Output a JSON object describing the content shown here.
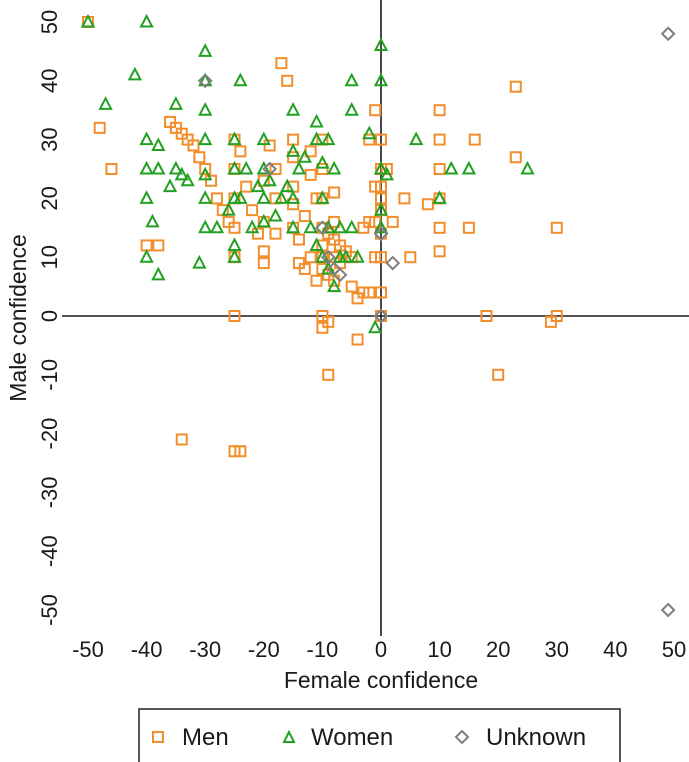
{
  "chart_data": {
    "type": "scatter",
    "title": "",
    "xlabel": "Female confidence",
    "ylabel": "Male confidence",
    "xlim": [
      -50,
      50
    ],
    "ylim": [
      -50,
      50
    ],
    "xticks": [
      "-50",
      "-40",
      "-30",
      "-20",
      "-10",
      "0",
      "10",
      "20",
      "30",
      "40",
      "50"
    ],
    "yticks": [
      "50",
      "40",
      "30",
      "20",
      "10",
      "0",
      "-10",
      "-20",
      "-30",
      "-40",
      "-50"
    ],
    "reference_lines": {
      "x": 0,
      "y": 0
    },
    "legend_position": "bottom",
    "series": [
      {
        "name": "Men",
        "marker": "square",
        "color": "#f28e2b",
        "points": [
          [
            -50,
            50
          ],
          [
            -48,
            32
          ],
          [
            -46,
            25
          ],
          [
            -40,
            12
          ],
          [
            -38,
            12
          ],
          [
            -36,
            33
          ],
          [
            -35,
            32
          ],
          [
            -34,
            31
          ],
          [
            -33,
            30
          ],
          [
            -32,
            29
          ],
          [
            -31,
            27
          ],
          [
            -30,
            25
          ],
          [
            -29,
            23
          ],
          [
            -28,
            20
          ],
          [
            -27,
            18
          ],
          [
            -26,
            16
          ],
          [
            -25,
            30
          ],
          [
            -25,
            25
          ],
          [
            -25,
            20
          ],
          [
            -25,
            15
          ],
          [
            -25,
            10
          ],
          [
            -25,
            0
          ],
          [
            -25,
            -23
          ],
          [
            -24,
            28
          ],
          [
            -23,
            22
          ],
          [
            -22,
            18
          ],
          [
            -21,
            14
          ],
          [
            -20,
            11
          ],
          [
            -20,
            9
          ],
          [
            -20,
            16
          ],
          [
            -20,
            23
          ],
          [
            -19,
            29
          ],
          [
            -18,
            25
          ],
          [
            -18,
            20
          ],
          [
            -18,
            14
          ],
          [
            -17,
            43
          ],
          [
            -16,
            40
          ],
          [
            -15,
            30
          ],
          [
            -15,
            27
          ],
          [
            -15,
            22
          ],
          [
            -15,
            19
          ],
          [
            -15,
            15
          ],
          [
            -14,
            13
          ],
          [
            -14,
            9
          ],
          [
            -13,
            17
          ],
          [
            -13,
            8
          ],
          [
            -12,
            28
          ],
          [
            -12,
            24
          ],
          [
            -12,
            10
          ],
          [
            -11,
            6
          ],
          [
            -11,
            20
          ],
          [
            -10,
            30
          ],
          [
            -10,
            25
          ],
          [
            -10,
            20
          ],
          [
            -10,
            15
          ],
          [
            -10,
            12
          ],
          [
            -10,
            10
          ],
          [
            -10,
            8
          ],
          [
            -10,
            -2
          ],
          [
            -10,
            0
          ],
          [
            -9,
            14
          ],
          [
            -9,
            7
          ],
          [
            -9,
            -1
          ],
          [
            -9,
            -10
          ],
          [
            -8,
            21
          ],
          [
            -8,
            16
          ],
          [
            -8,
            13
          ],
          [
            -8,
            10
          ],
          [
            -8,
            6
          ],
          [
            -7,
            12
          ],
          [
            -7,
            9
          ],
          [
            -6,
            11
          ],
          [
            -5,
            5
          ],
          [
            -5,
            10
          ],
          [
            -4,
            -4
          ],
          [
            -4,
            3
          ],
          [
            -3,
            4
          ],
          [
            -3,
            15
          ],
          [
            -2,
            30
          ],
          [
            -2,
            16
          ],
          [
            -2,
            4
          ],
          [
            -1,
            35
          ],
          [
            -1,
            22
          ],
          [
            -1,
            16
          ],
          [
            -1,
            10
          ],
          [
            0,
            30
          ],
          [
            0,
            25
          ],
          [
            0,
            22
          ],
          [
            0,
            20
          ],
          [
            0,
            18
          ],
          [
            0,
            14
          ],
          [
            0,
            10
          ],
          [
            0,
            4
          ],
          [
            0,
            0
          ],
          [
            1,
            25
          ],
          [
            2,
            16
          ],
          [
            4,
            20
          ],
          [
            5,
            10
          ],
          [
            8,
            19
          ],
          [
            10,
            35
          ],
          [
            10,
            30
          ],
          [
            10,
            25
          ],
          [
            10,
            20
          ],
          [
            10,
            15
          ],
          [
            10,
            11
          ],
          [
            15,
            15
          ],
          [
            16,
            30
          ],
          [
            18,
            0
          ],
          [
            20,
            -10
          ],
          [
            23,
            39
          ],
          [
            23,
            27
          ],
          [
            29,
            -1
          ],
          [
            30,
            0
          ],
          [
            30,
            15
          ],
          [
            -34,
            -21
          ],
          [
            -24,
            -23
          ]
        ]
      },
      {
        "name": "Women",
        "marker": "triangle",
        "color": "#22a022",
        "points": [
          [
            -50,
            50
          ],
          [
            -47,
            36
          ],
          [
            -42,
            41
          ],
          [
            -40,
            50
          ],
          [
            -40,
            30
          ],
          [
            -40,
            25
          ],
          [
            -40,
            20
          ],
          [
            -40,
            10
          ],
          [
            -39,
            16
          ],
          [
            -38,
            29
          ],
          [
            -38,
            25
          ],
          [
            -38,
            7
          ],
          [
            -36,
            22
          ],
          [
            -35,
            36
          ],
          [
            -35,
            25
          ],
          [
            -34,
            24
          ],
          [
            -33,
            23
          ],
          [
            -31,
            9
          ],
          [
            -30,
            45
          ],
          [
            -30,
            40
          ],
          [
            -30,
            35
          ],
          [
            -30,
            30
          ],
          [
            -30,
            24
          ],
          [
            -30,
            20
          ],
          [
            -30,
            15
          ],
          [
            -28,
            15
          ],
          [
            -26,
            18
          ],
          [
            -25,
            30
          ],
          [
            -25,
            25
          ],
          [
            -25,
            20
          ],
          [
            -25,
            12
          ],
          [
            -25,
            10
          ],
          [
            -24,
            40
          ],
          [
            -24,
            20
          ],
          [
            -23,
            25
          ],
          [
            -22,
            15
          ],
          [
            -21,
            22
          ],
          [
            -20,
            30
          ],
          [
            -20,
            25
          ],
          [
            -20,
            20
          ],
          [
            -20,
            16
          ],
          [
            -19,
            23
          ],
          [
            -18,
            17
          ],
          [
            -17,
            20
          ],
          [
            -16,
            22
          ],
          [
            -15,
            35
          ],
          [
            -15,
            28
          ],
          [
            -15,
            20
          ],
          [
            -15,
            15
          ],
          [
            -14,
            25
          ],
          [
            -13,
            27
          ],
          [
            -12,
            15
          ],
          [
            -11,
            33
          ],
          [
            -11,
            30
          ],
          [
            -11,
            12
          ],
          [
            -10,
            10
          ],
          [
            -10,
            20
          ],
          [
            -10,
            26
          ],
          [
            -9,
            30
          ],
          [
            -9,
            15
          ],
          [
            -9,
            8
          ],
          [
            -8,
            25
          ],
          [
            -8,
            5
          ],
          [
            -7,
            15
          ],
          [
            -7,
            10
          ],
          [
            -6,
            10
          ],
          [
            -5,
            40
          ],
          [
            -5,
            35
          ],
          [
            -5,
            15
          ],
          [
            -4,
            10
          ],
          [
            -2,
            31
          ],
          [
            -1,
            -2
          ],
          [
            0,
            46
          ],
          [
            0,
            40
          ],
          [
            0,
            25
          ],
          [
            0,
            18
          ],
          [
            0,
            15
          ],
          [
            1,
            24
          ],
          [
            6,
            30
          ],
          [
            10,
            20
          ],
          [
            12,
            25
          ],
          [
            15,
            25
          ],
          [
            25,
            25
          ]
        ]
      },
      {
        "name": "Unknown",
        "marker": "diamond",
        "color": "#7f7f7f",
        "points": [
          [
            -30,
            40
          ],
          [
            -19,
            25
          ],
          [
            -10,
            15
          ],
          [
            -9,
            10
          ],
          [
            -8,
            8
          ],
          [
            -7,
            7
          ],
          [
            0,
            14
          ],
          [
            2,
            9
          ],
          [
            0,
            0
          ],
          [
            49,
            48
          ],
          [
            49,
            -50
          ]
        ]
      }
    ]
  }
}
